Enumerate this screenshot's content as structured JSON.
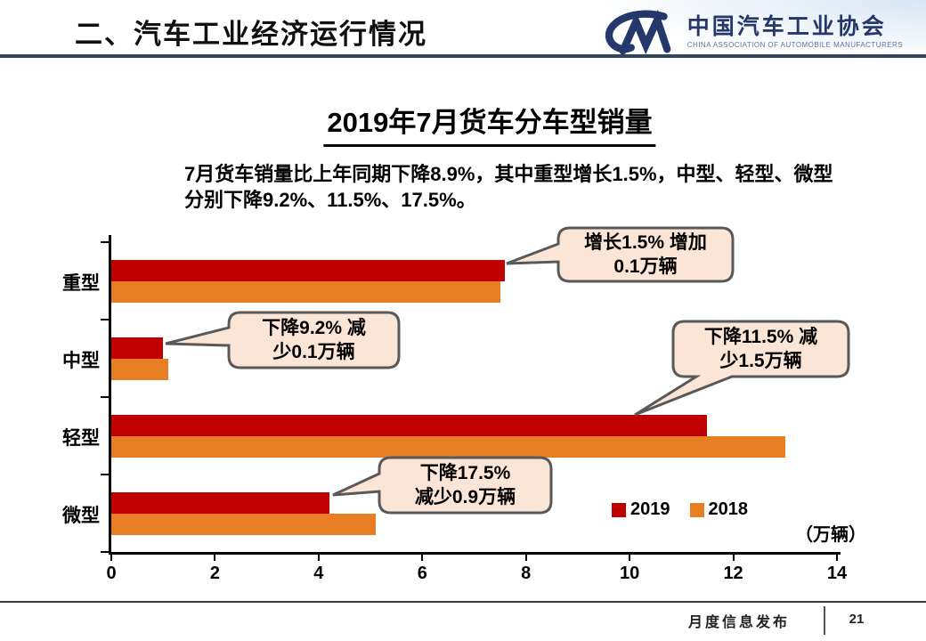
{
  "header": {
    "title": "二、汽车工业经济运行情况"
  },
  "logo": {
    "monogram": "CM",
    "name_cn": "中国汽车工业协会",
    "name_en": "CHINA ASSOCIATION OF AUTOMOBILE MANUFACTURERS"
  },
  "slide": {
    "title": "2019年7月货车分车型销量",
    "summary": "7月货车销量比上年同期下降8.9%，其中重型增长1.5%，中型、轻型、微型分别下降9.2%、11.5%、17.5%。"
  },
  "chart_data": {
    "type": "bar",
    "orientation": "horizontal",
    "title": "2019年7月货车分车型销量",
    "categories": [
      "重型",
      "中型",
      "轻型",
      "微型"
    ],
    "series": [
      {
        "name": "2019",
        "color": "#C00000",
        "values": [
          7.6,
          1.0,
          11.5,
          4.2
        ]
      },
      {
        "name": "2018",
        "color": "#E87E23",
        "values": [
          7.5,
          1.1,
          13.0,
          5.1
        ]
      }
    ],
    "xlim": [
      0,
      14
    ],
    "x_ticks": [
      0,
      2,
      4,
      6,
      8,
      10,
      12,
      14
    ],
    "unit_label": "（万辆）",
    "grid": false,
    "legend_position": "bottom-right",
    "annotation_style": {
      "fill": "#FBE5D6",
      "border": "#595959"
    },
    "annotations": [
      {
        "target": "重型-2019",
        "lines": [
          "增长1.5% 增加",
          "0.1万辆"
        ]
      },
      {
        "target": "中型-2019",
        "lines": [
          "下降9.2% 减",
          "少0.1万辆"
        ]
      },
      {
        "target": "轻型-2019",
        "lines": [
          "下降11.5% 减",
          "少1.5万辆"
        ]
      },
      {
        "target": "微型-2019",
        "lines": [
          "下降17.5%",
          "减少0.9万辆"
        ]
      }
    ]
  },
  "footer": {
    "label": "月度信息发布",
    "page": "21"
  }
}
